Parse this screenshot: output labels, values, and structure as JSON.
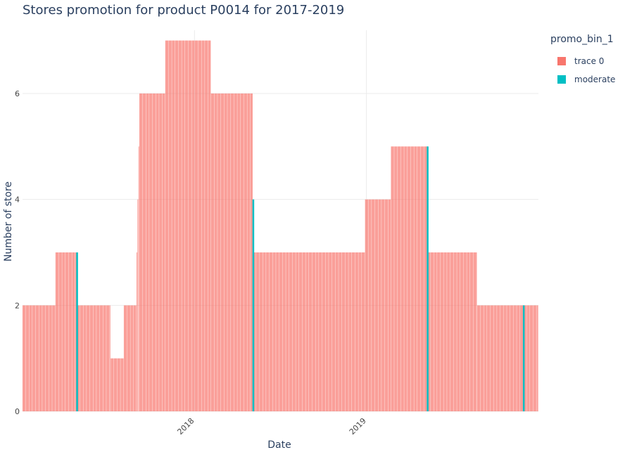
{
  "chart_data": {
    "type": "bar",
    "title": "Stores promotion for product P0014 for 2017-2019",
    "xlabel": "Date",
    "ylabel": "Number of store",
    "x_tick_labels": [
      "2018",
      "2019"
    ],
    "y_tick_labels": [
      "0",
      "2",
      "4",
      "6"
    ],
    "ylim": [
      0,
      7.3
    ],
    "grid": true,
    "legend": {
      "title": "promo_bin_1",
      "placement": "top-right"
    },
    "colors": {
      "trace 0": "#f8766d",
      "moderate": "#00bfc4"
    },
    "series": [
      {
        "name": "trace 0",
        "segments": [
          {
            "start": "2017-01-01",
            "end": "2017-03-11",
            "value": 2
          },
          {
            "start": "2017-03-12",
            "end": "2017-04-25",
            "value": 3
          },
          {
            "start": "2017-04-26",
            "end": "2017-07-06",
            "value": 2
          },
          {
            "start": "2017-07-07",
            "end": "2017-08-03",
            "value": 1
          },
          {
            "start": "2017-08-04",
            "end": "2017-08-30",
            "value": 2
          },
          {
            "start": "2017-08-31",
            "end": "2017-09-01",
            "value": 3
          },
          {
            "start": "2017-09-02",
            "end": "2017-09-03",
            "value": 4
          },
          {
            "start": "2017-09-04",
            "end": "2017-09-05",
            "value": 5
          },
          {
            "start": "2017-09-06",
            "end": "2017-10-30",
            "value": 6
          },
          {
            "start": "2017-10-31",
            "end": "2018-02-04",
            "value": 7
          },
          {
            "start": "2018-02-05",
            "end": "2018-05-04",
            "value": 6
          },
          {
            "start": "2018-05-05",
            "end": "2018-12-28",
            "value": 3
          },
          {
            "start": "2018-12-29",
            "end": "2019-02-21",
            "value": 4
          },
          {
            "start": "2019-02-22",
            "end": "2019-05-09",
            "value": 5
          },
          {
            "start": "2019-05-10",
            "end": "2019-08-23",
            "value": 3
          },
          {
            "start": "2019-08-24",
            "end": "2019-12-31",
            "value": 2
          }
        ]
      },
      {
        "name": "moderate",
        "points": [
          {
            "date": "2017-04-25",
            "value": 3
          },
          {
            "date": "2018-05-04",
            "value": 4
          },
          {
            "date": "2019-05-09",
            "value": 5
          },
          {
            "date": "2019-11-29",
            "value": 2
          }
        ]
      }
    ]
  }
}
